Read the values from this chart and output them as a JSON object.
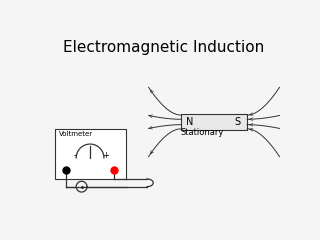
{
  "title": "Electromagnetic Induction",
  "title_fontsize": 11,
  "bg_color": "#f5f5f5",
  "voltmeter_label": "Voltmeter",
  "stationary_label": "Stationary",
  "magnet_label_N": "N",
  "magnet_label_S": "S",
  "line_color": "#333333",
  "lw": 0.9
}
